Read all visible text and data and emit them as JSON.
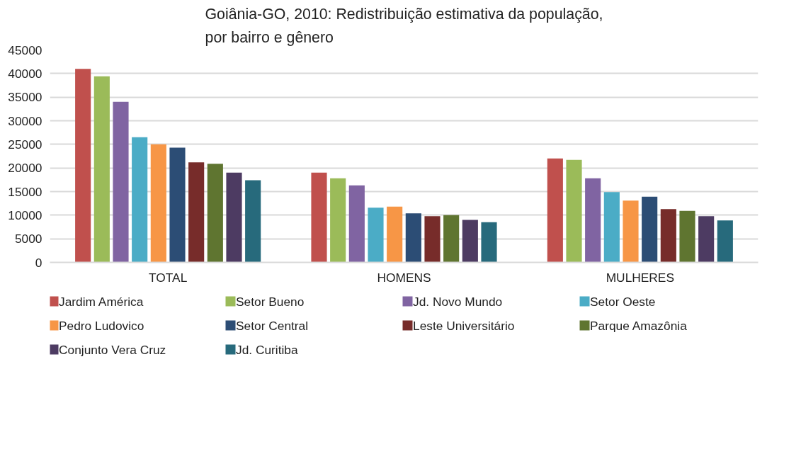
{
  "chart_data": {
    "type": "bar",
    "title": "Goiânia-GO, 2010: Redistribuição estimativa da população, por bairro e gênero",
    "categories": [
      "TOTAL",
      "HOMENS",
      "MULHERES"
    ],
    "ylim": [
      0,
      45000
    ],
    "yticks": [
      0,
      5000,
      10000,
      15000,
      20000,
      25000,
      30000,
      35000,
      40000,
      45000
    ],
    "grid": "y",
    "legend": "bottom",
    "series": [
      {
        "name": "Jardim América",
        "color": "#c0504d",
        "values": [
          41000,
          19000,
          22000
        ]
      },
      {
        "name": "Setor Bueno",
        "color": "#9bbb59",
        "values": [
          39400,
          17800,
          21700
        ]
      },
      {
        "name": "Jd. Novo Mundo",
        "color": "#8064a2",
        "values": [
          34000,
          16300,
          17800
        ]
      },
      {
        "name": "Setor Oeste",
        "color": "#4bacc6",
        "values": [
          26500,
          11600,
          14900
        ]
      },
      {
        "name": "Pedro Ludovico",
        "color": "#f79646",
        "values": [
          25000,
          11800,
          13100
        ]
      },
      {
        "name": "Setor Central",
        "color": "#2c4d75",
        "values": [
          24300,
          10400,
          13900
        ]
      },
      {
        "name": "Leste Universitário",
        "color": "#772c2a",
        "values": [
          21200,
          9800,
          11300
        ]
      },
      {
        "name": "Parque Amazônia",
        "color": "#5f7530",
        "values": [
          20900,
          10000,
          10900
        ]
      },
      {
        "name": "Conjunto Vera Cruz",
        "color": "#4d3b62",
        "values": [
          19000,
          9000,
          9800
        ]
      },
      {
        "name": "Jd. Curitiba",
        "color": "#276a7c",
        "values": [
          17400,
          8500,
          8900
        ]
      }
    ]
  }
}
